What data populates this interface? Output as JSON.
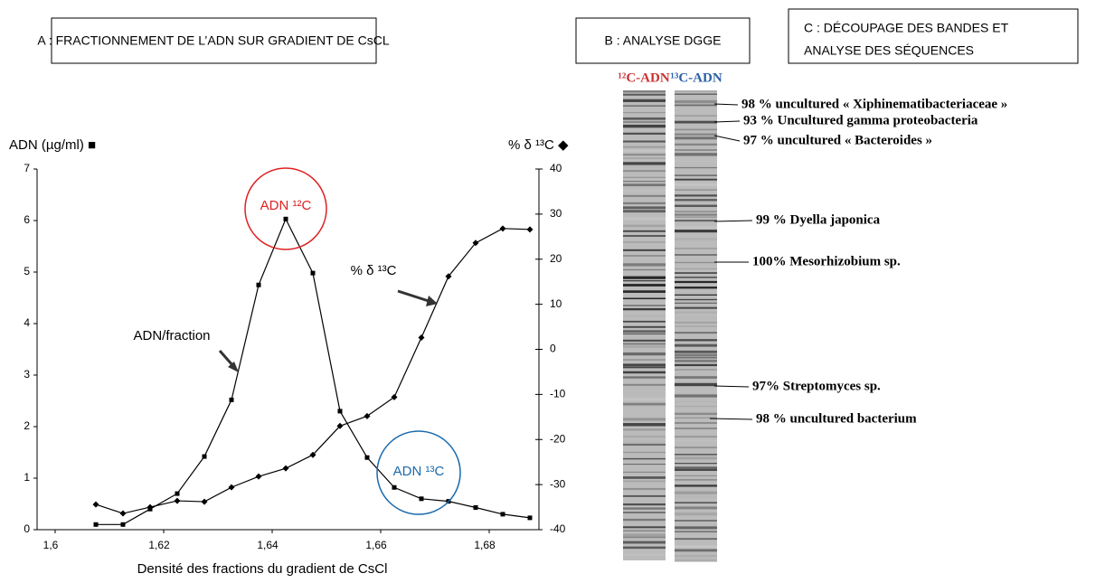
{
  "chart_data": {
    "type": "line",
    "x_label": "Densité des fractions du gradient de CsCl",
    "y_label": "ADN (µg/ml) ■",
    "y2_label": "% δ ¹³C ◆",
    "xlim": [
      1.6,
      1.69
    ],
    "xticks": [
      {
        "value": 1.6,
        "label": "1,6"
      },
      {
        "value": 1.62,
        "label": "1,62"
      },
      {
        "value": 1.64,
        "label": "1,64"
      },
      {
        "value": 1.66,
        "label": "1,66"
      },
      {
        "value": 1.68,
        "label": "1,68"
      }
    ],
    "ylim": [
      0,
      7
    ],
    "yticks": [
      0,
      1,
      2,
      3,
      4,
      5,
      6,
      7
    ],
    "y2lim": [
      -40,
      40
    ],
    "y2ticks": [
      -40,
      -30,
      -20,
      -10,
      0,
      10,
      20,
      30,
      40
    ],
    "x": [
      1.6075,
      1.6125,
      1.6175,
      1.6225,
      1.6275,
      1.6325,
      1.6375,
      1.6425,
      1.6475,
      1.6525,
      1.6575,
      1.6625,
      1.6675,
      1.6725,
      1.6775,
      1.6825,
      1.6875
    ],
    "series": [
      {
        "color": "#000000",
        "marker": "square",
        "values": [
          0.1,
          0.1,
          0.4,
          0.7,
          1.42,
          2.52,
          4.75,
          6.03,
          4.98,
          2.3,
          1.4,
          0.82,
          0.6,
          0.55,
          0.43,
          0.3,
          0.23
        ]
      },
      {
        "color": "#000000",
        "marker": "diamond",
        "axis": "y2",
        "values": [
          -34.4,
          -36.4,
          -35,
          -33.6,
          -33.8,
          -30.6,
          -28.2,
          -26.4,
          -23.4,
          -17,
          -14.8,
          -10.6,
          2.6,
          16.2,
          23.6,
          26.8,
          26.6
        ]
      }
    ],
    "annotations": [
      "ADN/fraction",
      "% δ ¹³C",
      "ADN ¹²C",
      "ADN ¹³C"
    ]
  },
  "panels": {
    "a": "A : FRACTIONNEMENT DE L’ADN SUR GRADIENT DE CsCL",
    "b": "B : ANALYSE DGGE",
    "c": [
      "C : DÉCOUPAGE DES BANDES ET",
      "ANALYSE DES SÉQUENCES"
    ]
  },
  "gel": {
    "lanes": [
      "¹²C-ADN",
      "¹³C-ADN"
    ],
    "bands": [
      "98 % uncultured « Xiphinematibacteriaceae »",
      "93 % Uncultured gamma proteobacteria",
      "97 % uncultured « Bacteroides »",
      "99 % Dyella japonica",
      "100%  Mesorhizobium sp.",
      "97% Streptomyces sp.",
      "98 % uncultured  bacterium"
    ]
  }
}
